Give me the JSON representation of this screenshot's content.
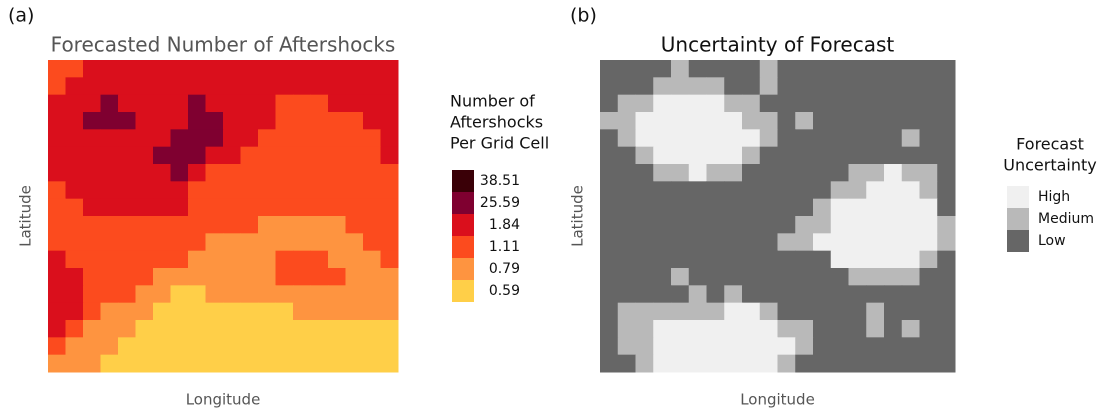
{
  "panels": [
    {
      "label": "(a)",
      "title": "Forecasted Number of Aftershocks",
      "ylabel": "Latitude",
      "xlabel": "Longitude",
      "legend": {
        "title": [
          "Number of",
          "Aftershocks",
          "Per Grid Cell"
        ],
        "levels": [
          {
            "value": 0.59,
            "color": "#ffcf48"
          },
          {
            "value": 0.79,
            "color": "#fe9440"
          },
          {
            "value": 1.11,
            "color": "#fc4b1e"
          },
          {
            "value": 1.84,
            "color": "#da0f1c"
          },
          {
            "value": 25.59,
            "color": "#7f0030"
          },
          {
            "value": 38.51,
            "color": "#3a0007"
          }
        ]
      },
      "cells": [
        [
          2,
          2,
          3,
          3,
          3,
          3,
          3,
          3,
          3,
          3,
          3,
          3,
          3,
          3,
          3,
          3,
          3,
          3,
          3,
          3
        ],
        [
          2,
          3,
          3,
          3,
          3,
          3,
          3,
          3,
          3,
          3,
          3,
          3,
          3,
          3,
          3,
          3,
          3,
          3,
          3,
          3
        ],
        [
          3,
          3,
          3,
          4,
          3,
          3,
          3,
          3,
          4,
          3,
          3,
          3,
          3,
          2,
          2,
          2,
          3,
          3,
          3,
          3
        ],
        [
          3,
          3,
          4,
          4,
          4,
          3,
          3,
          3,
          4,
          4,
          3,
          3,
          3,
          2,
          2,
          2,
          2,
          2,
          3,
          3
        ],
        [
          3,
          3,
          3,
          3,
          3,
          3,
          3,
          4,
          4,
          4,
          3,
          3,
          2,
          2,
          2,
          2,
          2,
          2,
          2,
          3
        ],
        [
          3,
          3,
          3,
          3,
          3,
          3,
          4,
          4,
          4,
          3,
          3,
          2,
          2,
          2,
          2,
          2,
          2,
          2,
          2,
          3
        ],
        [
          3,
          3,
          3,
          3,
          3,
          3,
          3,
          4,
          3,
          2,
          2,
          2,
          2,
          2,
          2,
          2,
          2,
          2,
          2,
          2
        ],
        [
          2,
          3,
          3,
          3,
          3,
          3,
          3,
          3,
          2,
          2,
          2,
          2,
          2,
          2,
          2,
          2,
          2,
          2,
          2,
          2
        ],
        [
          2,
          2,
          3,
          3,
          3,
          3,
          3,
          3,
          2,
          2,
          2,
          2,
          2,
          2,
          2,
          2,
          2,
          2,
          2,
          2
        ],
        [
          2,
          2,
          2,
          2,
          2,
          2,
          2,
          2,
          2,
          2,
          2,
          2,
          1,
          1,
          1,
          1,
          1,
          2,
          2,
          2
        ],
        [
          2,
          2,
          2,
          2,
          2,
          2,
          2,
          2,
          2,
          1,
          1,
          1,
          1,
          1,
          1,
          1,
          1,
          1,
          2,
          2
        ],
        [
          3,
          2,
          2,
          2,
          2,
          2,
          2,
          2,
          1,
          1,
          1,
          1,
          1,
          2,
          2,
          2,
          1,
          1,
          1,
          2
        ],
        [
          3,
          3,
          2,
          2,
          2,
          2,
          1,
          1,
          1,
          1,
          1,
          1,
          1,
          2,
          2,
          2,
          2,
          1,
          1,
          1
        ],
        [
          3,
          3,
          2,
          2,
          2,
          1,
          1,
          0,
          0,
          1,
          1,
          1,
          1,
          1,
          1,
          1,
          1,
          1,
          1,
          1
        ],
        [
          3,
          3,
          2,
          1,
          1,
          1,
          0,
          0,
          0,
          0,
          0,
          0,
          0,
          0,
          1,
          1,
          1,
          1,
          1,
          1
        ],
        [
          3,
          2,
          1,
          1,
          1,
          0,
          0,
          0,
          0,
          0,
          0,
          0,
          0,
          0,
          0,
          0,
          0,
          0,
          0,
          0
        ],
        [
          2,
          1,
          1,
          1,
          0,
          0,
          0,
          0,
          0,
          0,
          0,
          0,
          0,
          0,
          0,
          0,
          0,
          0,
          0,
          0
        ],
        [
          1,
          1,
          1,
          0,
          0,
          0,
          0,
          0,
          0,
          0,
          0,
          0,
          0,
          0,
          0,
          0,
          0,
          0,
          0,
          0
        ]
      ]
    },
    {
      "label": "(b)",
      "title": "Uncertainty of Forecast",
      "ylabel": "Latitude",
      "xlabel": "Longitude",
      "legend": {
        "title": [
          "Forecast",
          "Uncertainty"
        ],
        "levels": [
          {
            "label": "Low",
            "color": "#666666"
          },
          {
            "label": "Medium",
            "color": "#b9b9b9"
          },
          {
            "label": "High",
            "color": "#f0f0f0"
          }
        ]
      },
      "cells": [
        [
          0,
          0,
          0,
          0,
          1,
          0,
          0,
          0,
          0,
          1,
          0,
          0,
          0,
          0,
          0,
          0,
          0,
          0,
          0,
          0
        ],
        [
          0,
          0,
          0,
          1,
          1,
          1,
          1,
          0,
          0,
          1,
          0,
          0,
          0,
          0,
          0,
          0,
          0,
          0,
          0,
          0
        ],
        [
          0,
          1,
          1,
          2,
          2,
          2,
          2,
          1,
          1,
          0,
          0,
          0,
          0,
          0,
          0,
          0,
          0,
          0,
          0,
          0
        ],
        [
          1,
          1,
          2,
          2,
          2,
          2,
          2,
          2,
          1,
          1,
          0,
          1,
          0,
          0,
          0,
          0,
          0,
          0,
          0,
          0
        ],
        [
          0,
          1,
          2,
          2,
          2,
          2,
          2,
          2,
          2,
          1,
          0,
          0,
          0,
          0,
          0,
          0,
          0,
          1,
          0,
          0
        ],
        [
          0,
          0,
          1,
          2,
          2,
          2,
          2,
          2,
          1,
          0,
          0,
          0,
          0,
          0,
          0,
          0,
          0,
          0,
          0,
          0
        ],
        [
          0,
          0,
          0,
          1,
          1,
          2,
          1,
          1,
          0,
          0,
          0,
          0,
          0,
          0,
          1,
          1,
          2,
          1,
          1,
          0
        ],
        [
          0,
          0,
          0,
          0,
          0,
          0,
          0,
          0,
          0,
          0,
          0,
          0,
          0,
          1,
          1,
          2,
          2,
          2,
          1,
          0
        ],
        [
          0,
          0,
          0,
          0,
          0,
          0,
          0,
          0,
          0,
          0,
          0,
          0,
          1,
          2,
          2,
          2,
          2,
          2,
          2,
          0
        ],
        [
          0,
          0,
          0,
          0,
          0,
          0,
          0,
          0,
          0,
          0,
          0,
          1,
          1,
          2,
          2,
          2,
          2,
          2,
          2,
          1
        ],
        [
          0,
          0,
          0,
          0,
          0,
          0,
          0,
          0,
          0,
          0,
          1,
          1,
          2,
          2,
          2,
          2,
          2,
          2,
          2,
          1
        ],
        [
          0,
          0,
          0,
          0,
          0,
          0,
          0,
          0,
          0,
          0,
          0,
          0,
          0,
          2,
          2,
          2,
          2,
          2,
          1,
          0
        ],
        [
          0,
          0,
          0,
          0,
          1,
          0,
          0,
          0,
          0,
          0,
          0,
          0,
          0,
          0,
          1,
          1,
          1,
          1,
          0,
          0
        ],
        [
          0,
          0,
          0,
          0,
          0,
          1,
          0,
          1,
          0,
          0,
          0,
          0,
          0,
          0,
          0,
          0,
          0,
          0,
          0,
          0
        ],
        [
          0,
          1,
          1,
          1,
          1,
          1,
          1,
          2,
          2,
          1,
          0,
          0,
          0,
          0,
          0,
          1,
          0,
          0,
          0,
          0
        ],
        [
          0,
          1,
          1,
          2,
          2,
          2,
          2,
          2,
          2,
          2,
          1,
          1,
          0,
          0,
          0,
          1,
          0,
          1,
          0,
          0
        ],
        [
          0,
          1,
          1,
          2,
          2,
          2,
          2,
          2,
          2,
          2,
          2,
          1,
          0,
          0,
          0,
          0,
          0,
          0,
          0,
          0
        ],
        [
          0,
          0,
          1,
          2,
          2,
          2,
          2,
          2,
          2,
          2,
          1,
          0,
          0,
          0,
          0,
          0,
          0,
          0,
          0,
          0
        ]
      ]
    }
  ]
}
